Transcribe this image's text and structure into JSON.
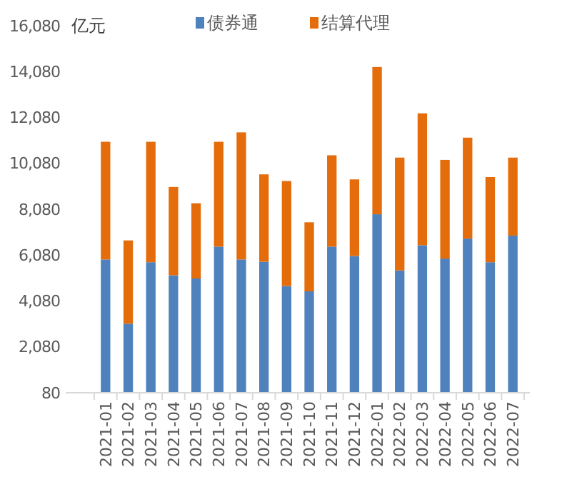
{
  "chart_data": {
    "type": "bar",
    "stacked": true,
    "ylabel": "亿元",
    "categories": [
      "2021-01",
      "2021-02",
      "2021-03",
      "2021-04",
      "2021-05",
      "2021-06",
      "2021-07",
      "2021-08",
      "2021-09",
      "2021-10",
      "2021-11",
      "2021-12",
      "2022-01",
      "2022-02",
      "2022-03",
      "2022-04",
      "2022-05",
      "2022-06",
      "2022-07"
    ],
    "series": [
      {
        "name": "债券通",
        "color": "#4f81bd",
        "values": [
          5890,
          3090,
          5770,
          5200,
          5060,
          6450,
          5890,
          5790,
          4730,
          4500,
          6450,
          6040,
          7860,
          5410,
          6510,
          5930,
          6800,
          5770,
          6930
        ]
      },
      {
        "name": "结算代理",
        "color": "#e46c0a",
        "values": [
          5130,
          3630,
          5250,
          3850,
          3280,
          4570,
          5540,
          3810,
          4580,
          3010,
          3980,
          3340,
          6420,
          4920,
          5750,
          4300,
          4400,
          3710,
          3400
        ]
      }
    ],
    "ylim": [
      80,
      16080
    ],
    "yticks": [
      80,
      {
        "value": 2080,
        "label": "2,080"
      },
      {
        "value": 4080,
        "label": "4,080"
      },
      {
        "value": 6080,
        "label": "6,080"
      },
      {
        "value": 8080,
        "label": "8,080"
      },
      {
        "value": 10080,
        "label": "10,080"
      },
      {
        "value": 12080,
        "label": "12,080"
      },
      {
        "value": 14080,
        "label": "14,080"
      },
      {
        "value": 16080,
        "label": "16,080"
      }
    ],
    "grid": false,
    "legend": "top"
  }
}
